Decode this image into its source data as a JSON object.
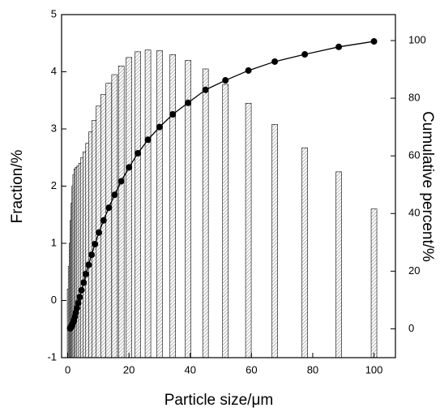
{
  "chart_data": {
    "type": "bar-line",
    "x_label": "Particle size/μm",
    "y_label": "Fraction/%",
    "y2_label": "Cumulative percent/%",
    "x": [
      0.8,
      1.1,
      1.4,
      1.7,
      2.0,
      2.3,
      2.6,
      3.0,
      3.4,
      3.9,
      4.5,
      5.2,
      5.9,
      6.8,
      7.8,
      8.9,
      10.2,
      11.7,
      13.4,
      15.3,
      17.5,
      20,
      22.9,
      26.2,
      30,
      34.3,
      39.3,
      45,
      51.5,
      59,
      67.6,
      77.4,
      88.5,
      100
    ],
    "series": [
      {
        "kind": "bar",
        "color": "#000000",
        "hatch": true,
        "values": [
          0.2,
          0.6,
          1.0,
          1.4,
          1.7,
          2.0,
          2.2,
          2.3,
          2.33,
          2.35,
          2.4,
          2.5,
          2.6,
          2.75,
          2.95,
          3.15,
          3.4,
          3.6,
          3.8,
          3.95,
          4.1,
          4.25,
          4.35,
          4.38,
          4.37,
          4.3,
          4.2,
          4.05,
          3.78,
          3.45,
          3.08,
          2.67,
          2.25,
          1.6
        ]
      },
      {
        "kind": "line",
        "axis": "y2",
        "color": "#000000",
        "marker": "circle",
        "values": [
          0.2,
          0.6,
          1.2,
          2,
          3,
          4.2,
          5.6,
          7.2,
          9,
          11,
          13.4,
          16,
          19,
          22.2,
          25.7,
          29.4,
          33.4,
          37.6,
          42,
          46.5,
          51.2,
          56,
          60.9,
          65.6,
          70,
          74.4,
          78.4,
          82.9,
          86.2,
          89.6,
          92.7,
          95.2,
          97.8,
          99.7
        ]
      }
    ],
    "xlim": [
      -2,
      107
    ],
    "xticks": [
      0,
      20,
      40,
      60,
      80,
      100
    ],
    "ylim": [
      -1,
      5
    ],
    "yticks": [
      -1,
      0,
      1,
      2,
      3,
      4,
      5
    ],
    "y2lim": [
      -10,
      109
    ],
    "y2ticks": [
      0,
      20,
      40,
      60,
      80,
      100
    ]
  }
}
